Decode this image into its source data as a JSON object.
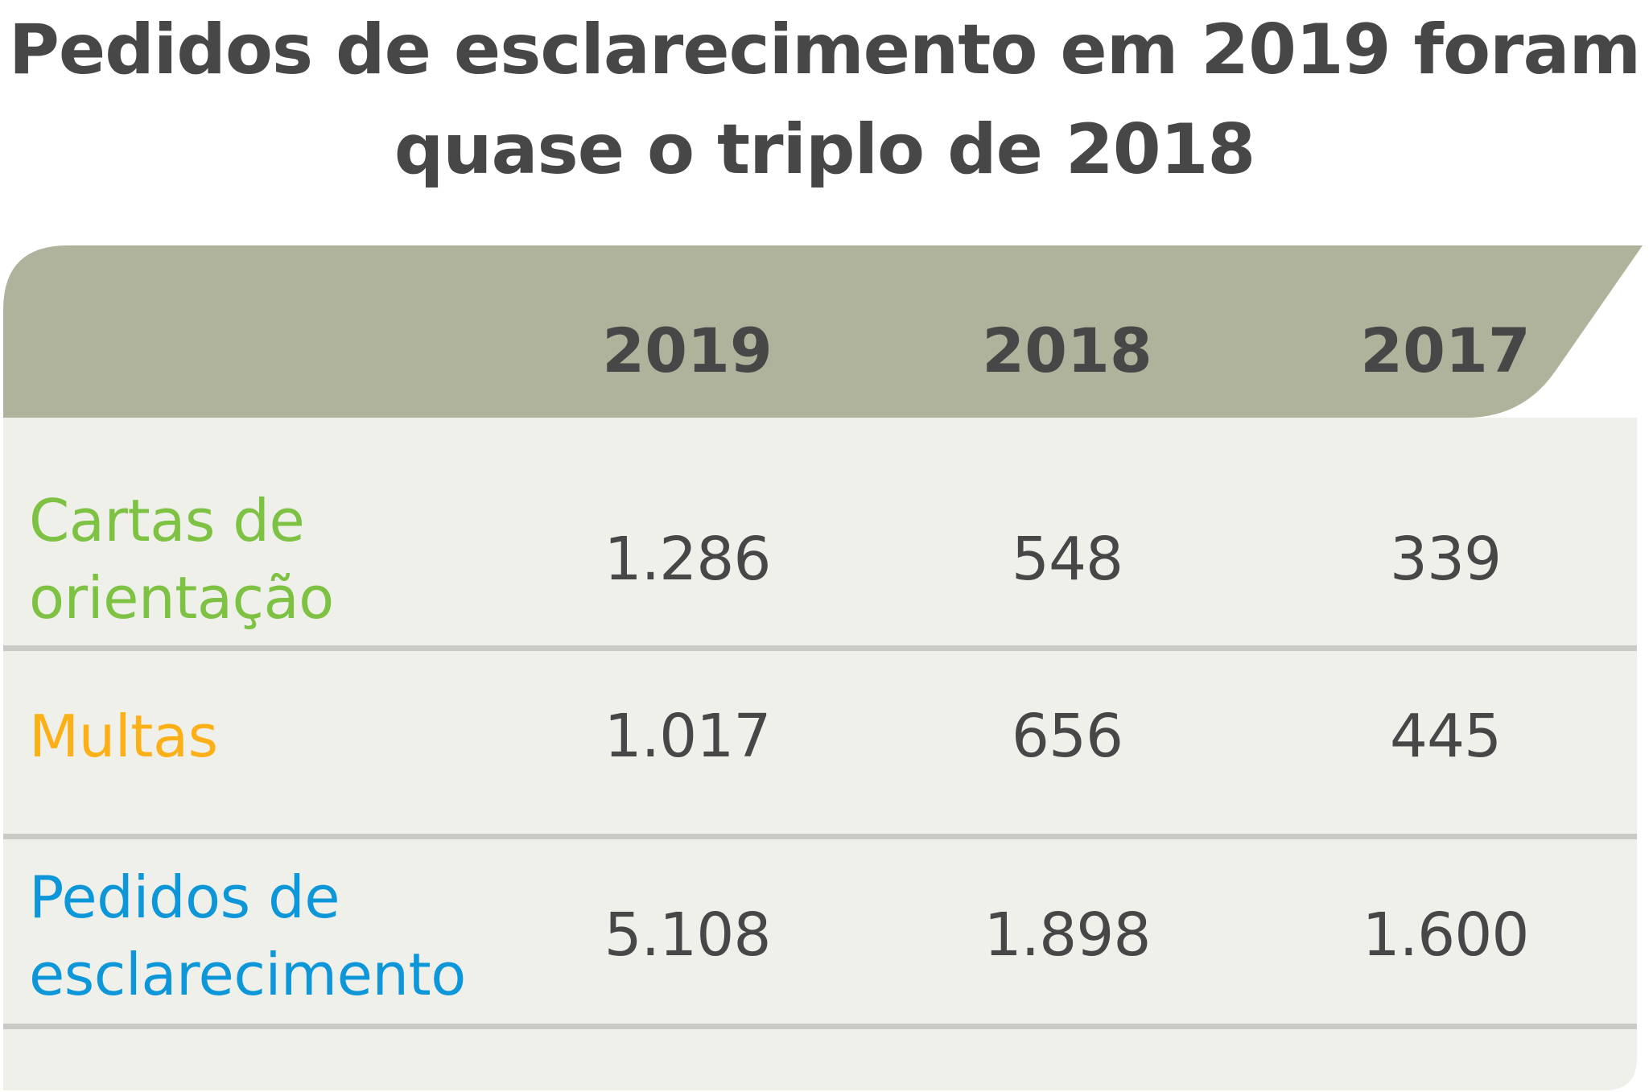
{
  "title": {
    "line1": "Pedidos de esclarecimento em 2019 foram",
    "line2": "quase o triplo de 2018"
  },
  "colors": {
    "header_bg": "#b0b39b",
    "body_bg": "#f0f0eb",
    "divider": "#c9c9c6",
    "text_dark": "#474747",
    "cartas": "#7dc242",
    "multas": "#fbb018",
    "pedidos": "#0d97d9"
  },
  "chart_data": {
    "type": "table",
    "title": "Pedidos de esclarecimento em 2019 foram quase o triplo de 2018",
    "columns": [
      "2019",
      "2018",
      "2017"
    ],
    "rows": [
      {
        "label": "Cartas de orientação",
        "values": [
          "1.286",
          "548",
          "339"
        ]
      },
      {
        "label": "Multas",
        "values": [
          "1.017",
          "656",
          "445"
        ]
      },
      {
        "label": "Pedidos de esclarecimento",
        "values": [
          "5.108",
          "1.898",
          "1.600"
        ]
      }
    ]
  },
  "labels": {
    "row0_line1": "Cartas de",
    "row0_line2": "orientação",
    "row1_line1": "Multas",
    "row2_line1": "Pedidos de",
    "row2_line2": "esclarecimento"
  }
}
